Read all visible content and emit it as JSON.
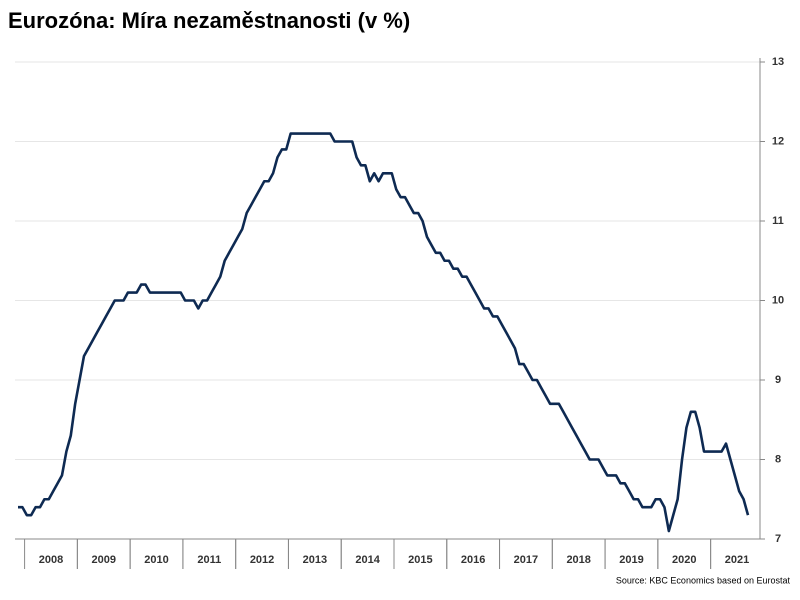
{
  "chart_data": {
    "type": "line",
    "title": "Eurozóna: Míra nezaměstnanosti (v %)",
    "source": "Source: KBC Economics based on Eurostat",
    "categories": [
      null,
      null,
      null,
      null,
      null,
      null,
      null,
      "2008",
      null,
      null,
      null,
      null,
      null,
      null,
      null,
      null,
      null,
      null,
      null,
      "2009",
      null,
      null,
      null,
      null,
      null,
      null,
      null,
      null,
      null,
      null,
      null,
      "2010",
      null,
      null,
      null,
      null,
      null,
      null,
      null,
      null,
      null,
      null,
      null,
      "2011",
      null,
      null,
      null,
      null,
      null,
      null,
      null,
      null,
      null,
      null,
      null,
      "2012",
      null,
      null,
      null,
      null,
      null,
      null,
      null,
      null,
      null,
      null,
      null,
      "2013",
      null,
      null,
      null,
      null,
      null,
      null,
      null,
      null,
      null,
      null,
      null,
      "2014",
      null,
      null,
      null,
      null,
      null,
      null,
      null,
      null,
      null,
      null,
      null,
      "2015",
      null,
      null,
      null,
      null,
      null,
      null,
      null,
      null,
      null,
      null,
      null,
      "2016",
      null,
      null,
      null,
      null,
      null,
      null,
      null,
      null,
      null,
      null,
      null,
      "2017",
      null,
      null,
      null,
      null,
      null,
      null,
      null,
      null,
      null,
      null,
      null,
      "2018",
      null,
      null,
      null,
      null,
      null,
      null,
      null,
      null,
      null,
      null,
      null,
      "2019",
      null,
      null,
      null,
      null,
      null,
      null,
      null,
      null,
      null,
      null,
      null,
      "2020",
      null,
      null,
      null,
      null,
      null,
      null,
      null,
      null,
      null,
      null,
      null,
      "2021",
      null,
      null,
      null
    ],
    "series": [
      {
        "color": "#0e2a52",
        "values": [
          7.4,
          7.4,
          7.3,
          7.3,
          7.4,
          7.4,
          7.5,
          7.5,
          7.6,
          7.7,
          7.8,
          8.1,
          8.3,
          8.7,
          9.0,
          9.3,
          9.4,
          9.5,
          9.6,
          9.7,
          9.8,
          9.9,
          10.0,
          10.0,
          10.0,
          10.1,
          10.1,
          10.1,
          10.2,
          10.2,
          10.1,
          10.1,
          10.1,
          10.1,
          10.1,
          10.1,
          10.1,
          10.1,
          10.0,
          10.0,
          10.0,
          9.9,
          10.0,
          10.0,
          10.1,
          10.2,
          10.3,
          10.5,
          10.6,
          10.7,
          10.8,
          10.9,
          11.1,
          11.2,
          11.3,
          11.4,
          11.5,
          11.5,
          11.6,
          11.8,
          11.9,
          11.9,
          12.1,
          12.1,
          12.1,
          12.1,
          12.1,
          12.1,
          12.1,
          12.1,
          12.1,
          12.1,
          12.0,
          12.0,
          12.0,
          12.0,
          12.0,
          11.8,
          11.7,
          11.7,
          11.5,
          11.6,
          11.5,
          11.6,
          11.6,
          11.6,
          11.4,
          11.3,
          11.3,
          11.2,
          11.1,
          11.1,
          11.0,
          10.8,
          10.7,
          10.6,
          10.6,
          10.5,
          10.5,
          10.4,
          10.4,
          10.3,
          10.3,
          10.2,
          10.1,
          10.0,
          9.9,
          9.9,
          9.8,
          9.8,
          9.7,
          9.6,
          9.5,
          9.4,
          9.2,
          9.2,
          9.1,
          9.0,
          9.0,
          8.9,
          8.8,
          8.7,
          8.7,
          8.7,
          8.6,
          8.5,
          8.4,
          8.3,
          8.2,
          8.1,
          8.0,
          8.0,
          8.0,
          7.9,
          7.8,
          7.8,
          7.8,
          7.7,
          7.7,
          7.6,
          7.5,
          7.5,
          7.4,
          7.4,
          7.4,
          7.5,
          7.5,
          7.4,
          7.1,
          7.3,
          7.5,
          8.0,
          8.4,
          8.6,
          8.6,
          8.4,
          8.1,
          8.1,
          8.1,
          8.1,
          8.1,
          8.2,
          8.0,
          7.8,
          7.6,
          7.5,
          7.3
        ]
      }
    ],
    "ylim": [
      7,
      13
    ],
    "yticks": [
      7,
      8,
      9,
      10,
      11,
      12,
      13
    ],
    "grid": true
  }
}
